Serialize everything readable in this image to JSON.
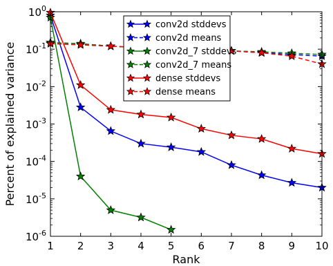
{
  "chart_data": {
    "type": "line",
    "xlabel": "Rank",
    "ylabel": "Percent of explained variance",
    "yscale": "log",
    "xlim": [
      1,
      10
    ],
    "ylim": [
      1e-06,
      1
    ],
    "x_ticks": [
      1,
      2,
      3,
      4,
      5,
      6,
      7,
      8,
      9,
      10
    ],
    "y_ticks": [
      {
        "value": 1e-06,
        "base": "10",
        "exp": "-6"
      },
      {
        "value": 1e-05,
        "base": "10",
        "exp": "-5"
      },
      {
        "value": 0.0001,
        "base": "10",
        "exp": "-4"
      },
      {
        "value": 0.001,
        "base": "10",
        "exp": "-3"
      },
      {
        "value": 0.01,
        "base": "10",
        "exp": "-2"
      },
      {
        "value": 0.1,
        "base": "10",
        "exp": "-1"
      },
      {
        "value": 1,
        "base": "10",
        "exp": "0"
      }
    ],
    "grid": false,
    "legend_position": "top-center",
    "series": [
      {
        "name": "conv2d stddevs",
        "color": "#0000ff",
        "dashed": false,
        "x": [
          1,
          2,
          3,
          4,
          5,
          6,
          7,
          8,
          9,
          10
        ],
        "y": [
          0.8,
          0.0028,
          0.00065,
          0.0003,
          0.00024,
          0.00018,
          8e-05,
          4.3e-05,
          2.7e-05,
          2e-05
        ]
      },
      {
        "name": "conv2d means",
        "color": "#0000ff",
        "dashed": true,
        "x": [
          1,
          2,
          3,
          4,
          5,
          6,
          7,
          8,
          9,
          10
        ],
        "y": [
          0.15,
          0.14,
          0.12,
          0.11,
          0.1,
          0.095,
          0.09,
          0.08,
          0.072,
          0.065
        ]
      },
      {
        "name": "conv2d_7 stddevs",
        "color": "#008000",
        "dashed": false,
        "x": [
          1,
          2,
          3,
          4,
          5
        ],
        "y": [
          0.7,
          4e-05,
          5e-06,
          3.2e-06,
          1.5e-06
        ]
      },
      {
        "name": "conv2d_7 means",
        "color": "#008000",
        "dashed": true,
        "x": [
          1,
          2,
          3,
          4,
          5,
          6,
          7,
          8,
          9,
          10
        ],
        "y": [
          0.15,
          0.14,
          0.12,
          0.11,
          0.1,
          0.095,
          0.09,
          0.085,
          0.078,
          0.072
        ]
      },
      {
        "name": "dense stddevs",
        "color": "#ff0000",
        "dashed": false,
        "x": [
          1,
          2,
          3,
          4,
          5,
          6,
          7,
          8,
          9,
          10
        ],
        "y": [
          0.95,
          0.011,
          0.0024,
          0.0018,
          0.0015,
          0.00075,
          0.0005,
          0.0004,
          0.00022,
          0.00016
        ]
      },
      {
        "name": "dense means",
        "color": "#ff0000",
        "dashed": true,
        "x": [
          1,
          2,
          3,
          4,
          5,
          6,
          7,
          8,
          9,
          10
        ],
        "y": [
          0.14,
          0.13,
          0.12,
          0.11,
          0.1,
          0.095,
          0.09,
          0.08,
          0.065,
          0.04
        ]
      }
    ]
  }
}
